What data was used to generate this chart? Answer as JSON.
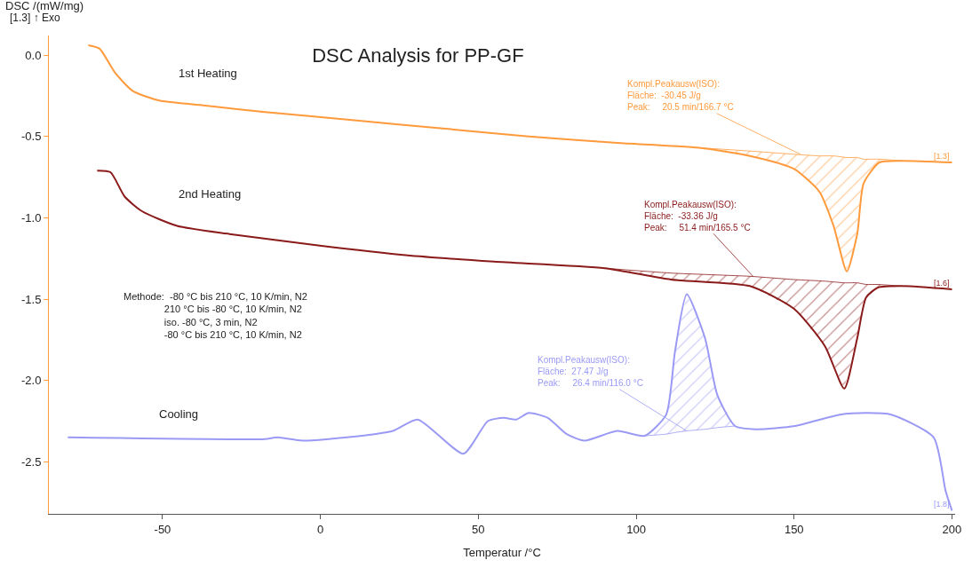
{
  "chart_data": {
    "type": "line",
    "title": "DSC Analysis for PP-GF",
    "xlabel": "Temperatur /°C",
    "ylabel": "DSC /(mW/mg)",
    "xlim": [
      -86,
      201
    ],
    "ylim": [
      -2.82,
      0.12
    ],
    "xticks": [
      -50,
      0,
      50,
      100,
      150,
      200
    ],
    "yticks": [
      {
        "value": 0,
        "label": "0.0"
      },
      -0.5,
      {
        "value": -1,
        "label": "-1.0"
      },
      -1.5,
      {
        "value": -2,
        "label": "-2.0"
      },
      -2.5
    ],
    "line_style": "solid",
    "series": [
      {
        "color": "#ff9a3c",
        "x": [
          -73.5,
          -70,
          -65,
          -59.5,
          -51,
          -37,
          -17.6,
          10,
          38,
          66,
          94,
          120,
          136,
          150,
          158,
          162.5,
          166.7,
          170,
          172,
          177,
          184,
          200
        ],
        "values": [
          0.06,
          0.04,
          -0.11,
          -0.22,
          -0.28,
          -0.31,
          -0.35,
          -0.4,
          -0.45,
          -0.5,
          -0.54,
          -0.57,
          -0.62,
          -0.7,
          -0.84,
          -1.05,
          -1.33,
          -1.1,
          -0.79,
          -0.66,
          -0.65,
          -0.66
        ]
      },
      {
        "color": "#8b1a1a",
        "x": [
          -70.7,
          -66.5,
          -62,
          -56.5,
          -45.4,
          -28.8,
          -0.8,
          27,
          55,
          90,
          111,
          136,
          150,
          159.8,
          165.9,
          170,
          172.8,
          176.5,
          184,
          200
        ],
        "values": [
          -0.71,
          -0.72,
          -0.87,
          -0.96,
          -1.05,
          -1.1,
          -1.17,
          -1.23,
          -1.27,
          -1.31,
          -1.38,
          -1.42,
          -1.56,
          -1.79,
          -2.05,
          -1.74,
          -1.49,
          -1.43,
          -1.42,
          -1.44
        ]
      },
      {
        "color": "#9a9af5",
        "x": [
          -80,
          -17.6,
          -13.7,
          -5.6,
          8.4,
          23,
          30.8,
          45.3,
          53,
          58,
          62,
          66,
          72,
          78,
          83.6,
          94,
          102.7,
          109.5,
          112.3,
          116,
          121.8,
          125.7,
          131.3,
          138,
          150.3,
          164.5,
          173.2,
          180.8,
          194.2,
          198,
          200
        ],
        "values": [
          -2.35,
          -2.36,
          -2.35,
          -2.37,
          -2.35,
          -2.31,
          -2.24,
          -2.45,
          -2.25,
          -2.23,
          -2.24,
          -2.2,
          -2.23,
          -2.33,
          -2.37,
          -2.31,
          -2.34,
          -2.21,
          -1.82,
          -1.47,
          -1.74,
          -2.09,
          -2.28,
          -2.3,
          -2.28,
          -2.21,
          -2.2,
          -2.21,
          -2.35,
          -2.68,
          -2.8
        ]
      },
      {
        "color": "#ff9a3c",
        "x": [
          120,
          136,
          150,
          158,
          162.5,
          166.7,
          170,
          172,
          177,
          184
        ],
        "values": [
          -0.57,
          -0.59,
          -0.61,
          -0.62,
          -0.62,
          -0.63,
          -0.63,
          -0.64,
          -0.64,
          -0.65
        ],
        "lower": [
          -0.57,
          -0.62,
          -0.7,
          -0.84,
          -1.05,
          -1.33,
          -1.1,
          -0.79,
          -0.66,
          -0.65
        ],
        "upper": [
          -0.57,
          -0.59,
          -0.61,
          -0.62,
          -0.62,
          -0.63,
          -0.63,
          -0.64,
          -0.64,
          -0.65
        ]
      },
      {
        "color": "#8b1a1a",
        "x": [
          90,
          111,
          136,
          150,
          159.8,
          165.9,
          170,
          172.8,
          176.5,
          184
        ],
        "values": [
          -1.31,
          -1.34,
          -1.36,
          -1.38,
          -1.39,
          -1.4,
          -1.4,
          -1.41,
          -1.41,
          -1.42
        ],
        "lower": [
          -1.31,
          -1.38,
          -1.42,
          -1.56,
          -1.79,
          -2.05,
          -1.74,
          -1.49,
          -1.43,
          -1.42
        ],
        "upper": [
          -1.31,
          -1.34,
          -1.36,
          -1.38,
          -1.39,
          -1.4,
          -1.4,
          -1.41,
          -1.41,
          -1.42
        ]
      },
      {
        "color": "#9a9af5",
        "x": [
          102.7,
          109.5,
          112.3,
          116,
          121.8,
          125.7,
          131.3
        ],
        "values": [
          -2.34,
          -2.33,
          -2.32,
          -2.31,
          -2.3,
          -2.29,
          -2.28
        ],
        "lower": [
          -2.34,
          -2.21,
          -1.82,
          -1.47,
          -1.74,
          -2.09,
          -2.28
        ],
        "upper": [
          -2.34,
          -2.33,
          -2.32,
          -2.31,
          -2.3,
          -2.29,
          -2.28
        ]
      }
    ],
    "annotations": [
      "1st Heating",
      "2nd Heating",
      "Cooling",
      {
        "text": "Kompl.Peakausw(ISO):\nFläche:  -30.45 J/g\nPeak:     20.5 min/166.7 °C",
        "x": 152,
        "y": -0.61
      },
      {
        "text": "Kompl.Peakausw(ISO):\nFläche:  -33.36 J/g\nPeak:     51.4 min/165.5 °C",
        "x": 137,
        "y": -1.36
      },
      {
        "text": "Kompl.Peakausw(ISO):\nFläche:  27.47 J/g\nPeak:     26.4 min/116.0 °C",
        "x": 116,
        "y": -2.31
      },
      {
        "text": "[1.3]",
        "x": 200,
        "y": -0.66
      },
      {
        "text": "[1.6]",
        "x": 200,
        "y": -1.44
      },
      {
        "text": "[1.8]",
        "x": 200,
        "y": -2.8
      },
      "[1.3] ↑ Exo",
      "Methode:  -80 °C bis 210 °C, 10 K/min, N2\n               210 °C bis -80 °C, 10 K/min, N2\n               iso. -80 °C, 3 min, N2\n               -80 °C bis 210 °C, 10 K/min, N2"
    ]
  }
}
